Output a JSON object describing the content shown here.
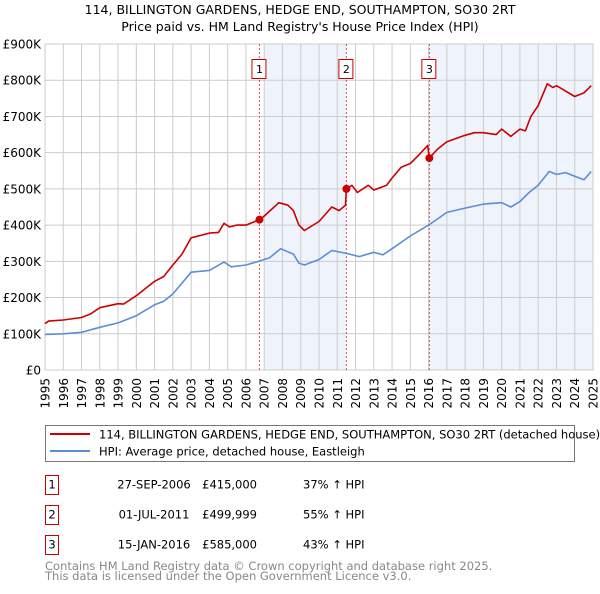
{
  "chart_data": {
    "type": "line",
    "title": "114, BILLINGTON GARDENS, HEDGE END, SOUTHAMPTON, SO30 2RT",
    "subtitle": "Price paid vs. HM Land Registry's House Price Index (HPI)",
    "xlim": [
      1995,
      2025
    ],
    "ylim": [
      0,
      900000
    ],
    "x_ticks": [
      "1995",
      "1996",
      "1997",
      "1998",
      "1999",
      "2000",
      "2001",
      "2002",
      "2003",
      "2004",
      "2005",
      "2006",
      "2007",
      "2008",
      "2009",
      "2010",
      "2011",
      "2012",
      "2013",
      "2014",
      "2015",
      "2016",
      "2017",
      "2018",
      "2019",
      "2020",
      "2021",
      "2022",
      "2023",
      "2024",
      "2025"
    ],
    "y_ticks": [
      {
        "value": 0,
        "label": "£0"
      },
      {
        "value": 100000,
        "label": "£100K"
      },
      {
        "value": 200000,
        "label": "£200K"
      },
      {
        "value": 300000,
        "label": "£300K"
      },
      {
        "value": 400000,
        "label": "£400K"
      },
      {
        "value": 500000,
        "label": "£500K"
      },
      {
        "value": 600000,
        "label": "£600K"
      },
      {
        "value": 700000,
        "label": "£700K"
      },
      {
        "value": 800000,
        "label": "£800K"
      },
      {
        "value": 900000,
        "label": "£900K"
      }
    ],
    "grid": true,
    "shaded_ranges": [
      [
        2007.0,
        2011.5
      ],
      [
        2016.04,
        2025
      ]
    ],
    "colors": {
      "property": "#cc0000",
      "hpi": "#5b8ed6",
      "shade": "#eef3fc",
      "grid": "#cccccc"
    },
    "series": [
      {
        "name": "114, BILLINGTON GARDENS, HEDGE END, SOUTHAMPTON, SO30 2RT (detached house)",
        "color": "#cc0000",
        "x": [
          1995,
          1995.2,
          1996,
          1997,
          1997.5,
          1998,
          1999,
          1999.3,
          2000,
          2001,
          2001.5,
          2002,
          2002.5,
          2003,
          2004,
          2004.5,
          2004.8,
          2005.1,
          2005.5,
          2006,
          2006.74,
          2007,
          2007.8,
          2008.3,
          2008.6,
          2008.9,
          2009.2,
          2010,
          2010.7,
          2011.1,
          2011.45,
          2011.5,
          2011.8,
          2012.1,
          2012.7,
          2013,
          2013.7,
          2014,
          2014.5,
          2015,
          2015.4,
          2015.95,
          2016.04,
          2016.5,
          2017,
          2018,
          2018.5,
          2019,
          2019.7,
          2020,
          2020.5,
          2021,
          2021.3,
          2021.6,
          2022,
          2022.5,
          2022.8,
          2023,
          2023.5,
          2024,
          2024.5,
          2024.9
        ],
        "values": [
          128000,
          135000,
          138000,
          145000,
          155000,
          172000,
          183000,
          182000,
          205000,
          245000,
          258000,
          290000,
          320000,
          365000,
          378000,
          380000,
          405000,
          395000,
          400000,
          400000,
          415000,
          425000,
          462000,
          455000,
          440000,
          400000,
          385000,
          410000,
          450000,
          440000,
          455000,
          500000,
          510000,
          490000,
          510000,
          497000,
          510000,
          530000,
          560000,
          570000,
          590000,
          620000,
          585000,
          610000,
          630000,
          648000,
          655000,
          655000,
          650000,
          665000,
          645000,
          665000,
          660000,
          700000,
          730000,
          790000,
          780000,
          785000,
          770000,
          755000,
          765000,
          785000
        ]
      },
      {
        "name": "HPI: Average price, detached house, Eastleigh",
        "color": "#5b8ed6",
        "x": [
          1995,
          1996,
          1997,
          1998,
          1999,
          2000,
          2001,
          2001.5,
          2002,
          2002.5,
          2003,
          2004,
          2004.8,
          2005.2,
          2006,
          2006.7,
          2007.3,
          2007.9,
          2008.6,
          2008.9,
          2009.2,
          2010,
          2010.7,
          2011.5,
          2012.2,
          2013,
          2013.5,
          2014,
          2015,
          2016,
          2017,
          2018,
          2019,
          2020,
          2020.5,
          2021,
          2021.5,
          2022,
          2022.6,
          2023,
          2023.5,
          2024,
          2024.5,
          2024.9
        ],
        "values": [
          98000,
          100000,
          104000,
          118000,
          130000,
          150000,
          180000,
          190000,
          210000,
          240000,
          270000,
          275000,
          298000,
          285000,
          290000,
          300000,
          310000,
          335000,
          320000,
          295000,
          290000,
          305000,
          330000,
          322000,
          313000,
          325000,
          318000,
          335000,
          370000,
          400000,
          435000,
          447000,
          458000,
          462000,
          450000,
          465000,
          490000,
          510000,
          548000,
          540000,
          545000,
          535000,
          525000,
          548000
        ]
      }
    ],
    "sales": [
      {
        "num": "1",
        "x": 2006.74,
        "value": 415000
      },
      {
        "num": "2",
        "x": 2011.5,
        "value": 499999
      },
      {
        "num": "3",
        "x": 2016.04,
        "value": 585000
      }
    ]
  },
  "legend": {
    "property_label": "114, BILLINGTON GARDENS, HEDGE END, SOUTHAMPTON, SO30 2RT (detached house)",
    "hpi_label": "HPI: Average price, detached house, Eastleigh"
  },
  "transactions": [
    {
      "num": "1",
      "date": "27-SEP-2006",
      "price": "£415,000",
      "delta": "37% ↑ HPI"
    },
    {
      "num": "2",
      "date": "01-JUL-2011",
      "price": "£499,999",
      "delta": "55% ↑ HPI"
    },
    {
      "num": "3",
      "date": "15-JAN-2016",
      "price": "£585,000",
      "delta": "43% ↑ HPI"
    }
  ],
  "footer": {
    "line1": "Contains HM Land Registry data © Crown copyright and database right 2025.",
    "line2": "This data is licensed under the Open Government Licence v3.0."
  }
}
